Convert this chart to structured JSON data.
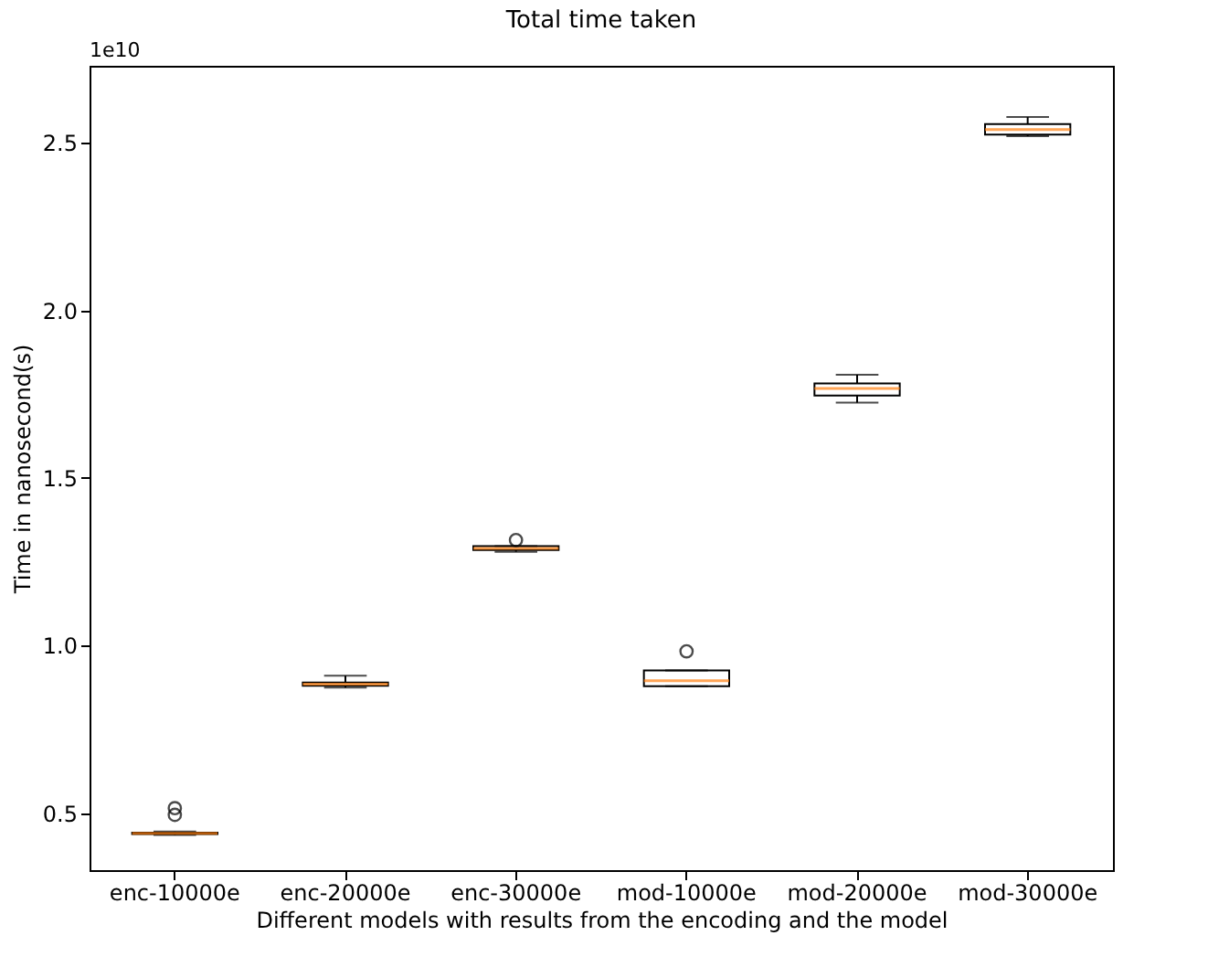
{
  "chart_data": {
    "type": "box",
    "title": "Total time taken",
    "xlabel": "Different models with results from the encoding and the model",
    "ylabel": "Time in nanosecond(s)",
    "annotations": [
      "1e10"
    ],
    "categories": [
      "enc-10000e",
      "enc-20000e",
      "enc-30000e",
      "mod-10000e",
      "mod-20000e",
      "mod-30000e"
    ],
    "boxes": [
      {
        "low": 0.435,
        "q1": 0.438,
        "median": 0.44,
        "q3": 0.442,
        "high": 0.445,
        "outliers": [
          0.495,
          0.515
        ]
      },
      {
        "low": 0.875,
        "q1": 0.88,
        "median": 0.885,
        "q3": 0.89,
        "high": 0.91
      },
      {
        "low": 1.28,
        "q1": 1.285,
        "median": 1.29,
        "q3": 1.297,
        "high": 1.297,
        "outliers": [
          1.315
        ]
      },
      {
        "low": 0.879,
        "q1": 0.879,
        "median": 0.895,
        "q3": 0.926,
        "high": 0.926,
        "outliers": [
          0.983
        ]
      },
      {
        "low": 1.725,
        "q1": 1.746,
        "median": 1.767,
        "q3": 1.782,
        "high": 1.808
      },
      {
        "low": 2.52,
        "q1": 2.525,
        "median": 2.54,
        "q3": 2.556,
        "high": 2.577
      }
    ],
    "ylim": [
      0.33,
      2.73
    ],
    "yticks": [
      {
        "value": 0.5,
        "label": "0.5"
      },
      {
        "value": 1.0,
        "label": "1.0"
      },
      {
        "value": 1.5,
        "label": "1.5"
      },
      {
        "value": 2.0,
        "label": "2.0"
      },
      {
        "value": 2.5,
        "label": "2.5"
      }
    ]
  }
}
